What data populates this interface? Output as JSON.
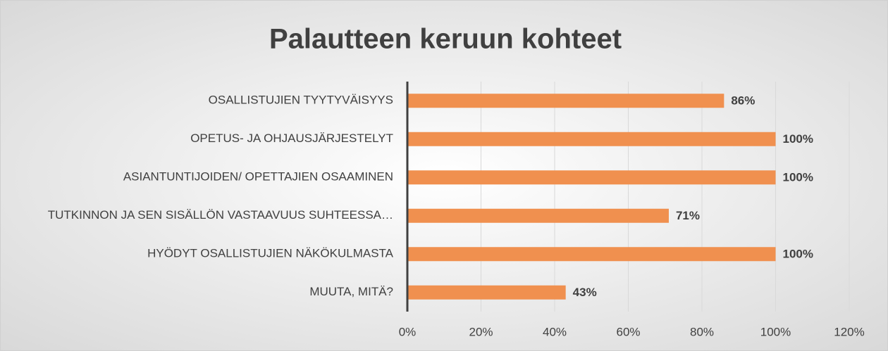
{
  "chart_data": {
    "type": "bar",
    "orientation": "horizontal",
    "title": "Palautteen keruun kohteet",
    "categories": [
      "OSALLISTUJIEN TYYTYVÄISYYS",
      "OPETUS- JA OHJAUSJÄRJESTELYT",
      "ASIANTUNTIJOIDEN/ OPETTAJIEN OSAAMINEN",
      "TUTKINNON JA SEN SISÄLLÖN VASTAAVUUS SUHTEESSA…",
      "HYÖDYT OSALLISTUJIEN NÄKÖKULMASTA",
      "MUUTA, MITÄ?"
    ],
    "values": [
      86,
      100,
      100,
      71,
      100,
      43
    ],
    "value_labels": [
      "86%",
      "100%",
      "100%",
      "71%",
      "100%",
      "43%"
    ],
    "color": "#f0904f",
    "xlim": [
      0,
      120
    ],
    "xticks": [
      {
        "value": 0,
        "label": "0%"
      },
      {
        "value": 20,
        "label": "20%"
      },
      {
        "value": 40,
        "label": "40%"
      },
      {
        "value": 60,
        "label": "60%"
      },
      {
        "value": 80,
        "label": "80%"
      },
      {
        "value": 100,
        "label": "100%"
      },
      {
        "value": 120,
        "label": "120%"
      }
    ],
    "grid": true
  }
}
